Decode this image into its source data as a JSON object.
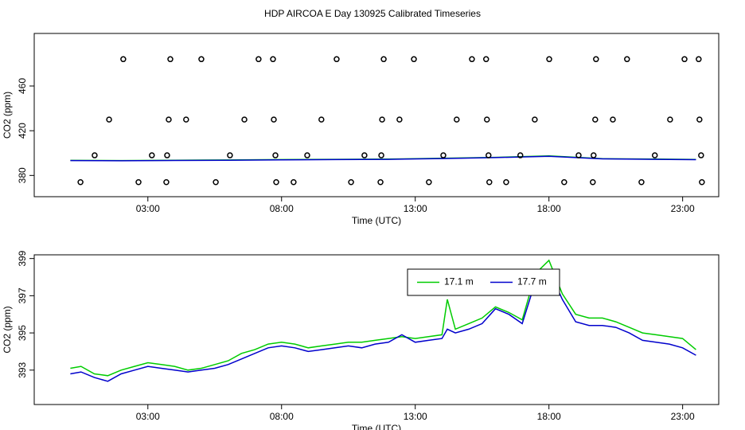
{
  "title": "HDP AIRCOA E  Day 130925  Calibrated Timeseries",
  "chart_data": [
    {
      "type": "scatter",
      "y_label": "CO2 (ppm)",
      "x_label": "Time (UTC)",
      "xlim": [
        -1.25,
        24.35
      ],
      "ylim": [
        361,
        507
      ],
      "xticks": [
        {
          "value": 3,
          "label": "03:00"
        },
        {
          "value": 8,
          "label": "08:00"
        },
        {
          "value": 13,
          "label": "13:00"
        },
        {
          "value": 18,
          "label": "18:00"
        },
        {
          "value": 23,
          "label": "23:00"
        }
      ],
      "yticks": [
        380,
        420,
        460
      ],
      "points": {
        "color": "#000000",
        "x": [
          2.08,
          3.84,
          5.0,
          7.14,
          7.68,
          10.06,
          11.82,
          12.95,
          15.12,
          15.65,
          18.01,
          19.76,
          20.92,
          23.07,
          23.6,
          1.55,
          3.78,
          4.43,
          6.61,
          7.71,
          9.49,
          11.76,
          12.41,
          14.55,
          15.68,
          17.47,
          19.73,
          20.39,
          22.53,
          23.63,
          1.01,
          3.15,
          3.72,
          6.07,
          7.77,
          8.96,
          11.1,
          11.73,
          14.05,
          15.74,
          16.93,
          19.11,
          19.67,
          21.96,
          23.69,
          0.48,
          2.65,
          3.69,
          5.54,
          7.8,
          8.45,
          10.6,
          11.7,
          13.51,
          15.77,
          16.4,
          18.57,
          19.64,
          21.46,
          23.72
        ],
        "values": [
          484,
          484,
          484,
          484,
          484,
          484,
          484,
          484,
          484,
          484,
          484,
          484,
          484,
          484,
          484,
          430,
          430,
          430,
          430,
          430,
          430,
          430,
          430,
          430,
          430,
          430,
          430,
          430,
          430,
          430,
          398,
          398,
          398,
          398,
          398,
          398,
          398,
          398,
          398,
          398,
          398,
          398,
          398,
          398,
          398,
          374,
          374,
          374,
          374,
          374,
          374,
          374,
          374,
          374,
          374,
          374,
          374,
          374,
          374,
          374
        ]
      },
      "x": [
        0.1,
        2,
        4,
        6,
        8,
        10,
        12,
        14,
        16,
        18,
        20,
        22,
        23.5
      ],
      "series": [
        {
          "color": "#00cc00",
          "values": [
            393.5,
            393.3,
            393.6,
            393.8,
            394.2,
            394.4,
            394.6,
            395.3,
            396.2,
            397.5,
            395.0,
            394.6,
            394.3
          ]
        },
        {
          "color": "#0000cc",
          "values": [
            393.3,
            393.1,
            393.4,
            393.6,
            394.0,
            394.2,
            394.4,
            395.1,
            396.0,
            397.2,
            394.8,
            394.4,
            394.1
          ]
        }
      ]
    },
    {
      "type": "line",
      "y_label": "CO2 (ppm)",
      "x_label": "Time (UTC)",
      "xlim": [
        -1.25,
        24.35
      ],
      "ylim": [
        391.15,
        399.2
      ],
      "xticks": [
        {
          "value": 3,
          "label": "03:00"
        },
        {
          "value": 8,
          "label": "08:00"
        },
        {
          "value": 13,
          "label": "13:00"
        },
        {
          "value": 18,
          "label": "18:00"
        },
        {
          "value": 23,
          "label": "23:00"
        }
      ],
      "yticks": [
        393,
        395,
        397,
        399
      ],
      "legend": "top",
      "x": [
        0.1,
        0.5,
        1,
        1.5,
        2,
        2.5,
        3,
        3.5,
        4,
        4.5,
        5,
        5.5,
        6,
        6.5,
        7,
        7.5,
        8,
        8.5,
        9,
        9.5,
        10,
        10.5,
        11,
        11.5,
        12,
        12.5,
        13,
        13.5,
        14,
        14.2,
        14.5,
        15,
        15.5,
        16,
        16.5,
        17,
        17.5,
        18,
        18.5,
        19,
        19.5,
        20,
        20.5,
        21,
        21.5,
        22,
        22.5,
        23,
        23.5
      ],
      "series": [
        {
          "name": "17.1 m",
          "color": "#00cc00",
          "values": [
            393.1,
            393.2,
            392.8,
            392.7,
            393.0,
            393.2,
            393.4,
            393.3,
            393.2,
            393.0,
            393.1,
            393.3,
            393.5,
            393.9,
            394.1,
            394.4,
            394.5,
            394.4,
            394.2,
            394.3,
            394.4,
            394.5,
            394.5,
            394.6,
            394.7,
            394.8,
            394.7,
            394.8,
            394.9,
            396.8,
            395.2,
            395.5,
            395.8,
            396.4,
            396.1,
            395.7,
            398.2,
            398.9,
            397.1,
            396.0,
            395.8,
            395.8,
            395.6,
            395.3,
            395.0,
            394.9,
            394.8,
            394.7,
            394.1
          ]
        },
        {
          "name": "17.7 m",
          "color": "#0000cc",
          "values": [
            392.8,
            392.9,
            392.6,
            392.4,
            392.8,
            393.0,
            393.2,
            393.1,
            393.0,
            392.9,
            393.0,
            393.1,
            393.3,
            393.6,
            393.9,
            394.2,
            394.3,
            394.2,
            394.0,
            394.1,
            394.2,
            394.3,
            394.2,
            394.4,
            394.5,
            394.9,
            394.5,
            394.6,
            394.7,
            395.2,
            395.0,
            395.2,
            395.5,
            396.3,
            396.0,
            395.5,
            397.8,
            398.4,
            396.8,
            395.6,
            395.4,
            395.4,
            395.3,
            395.0,
            394.6,
            394.5,
            394.4,
            394.2,
            393.8
          ]
        }
      ]
    }
  ]
}
